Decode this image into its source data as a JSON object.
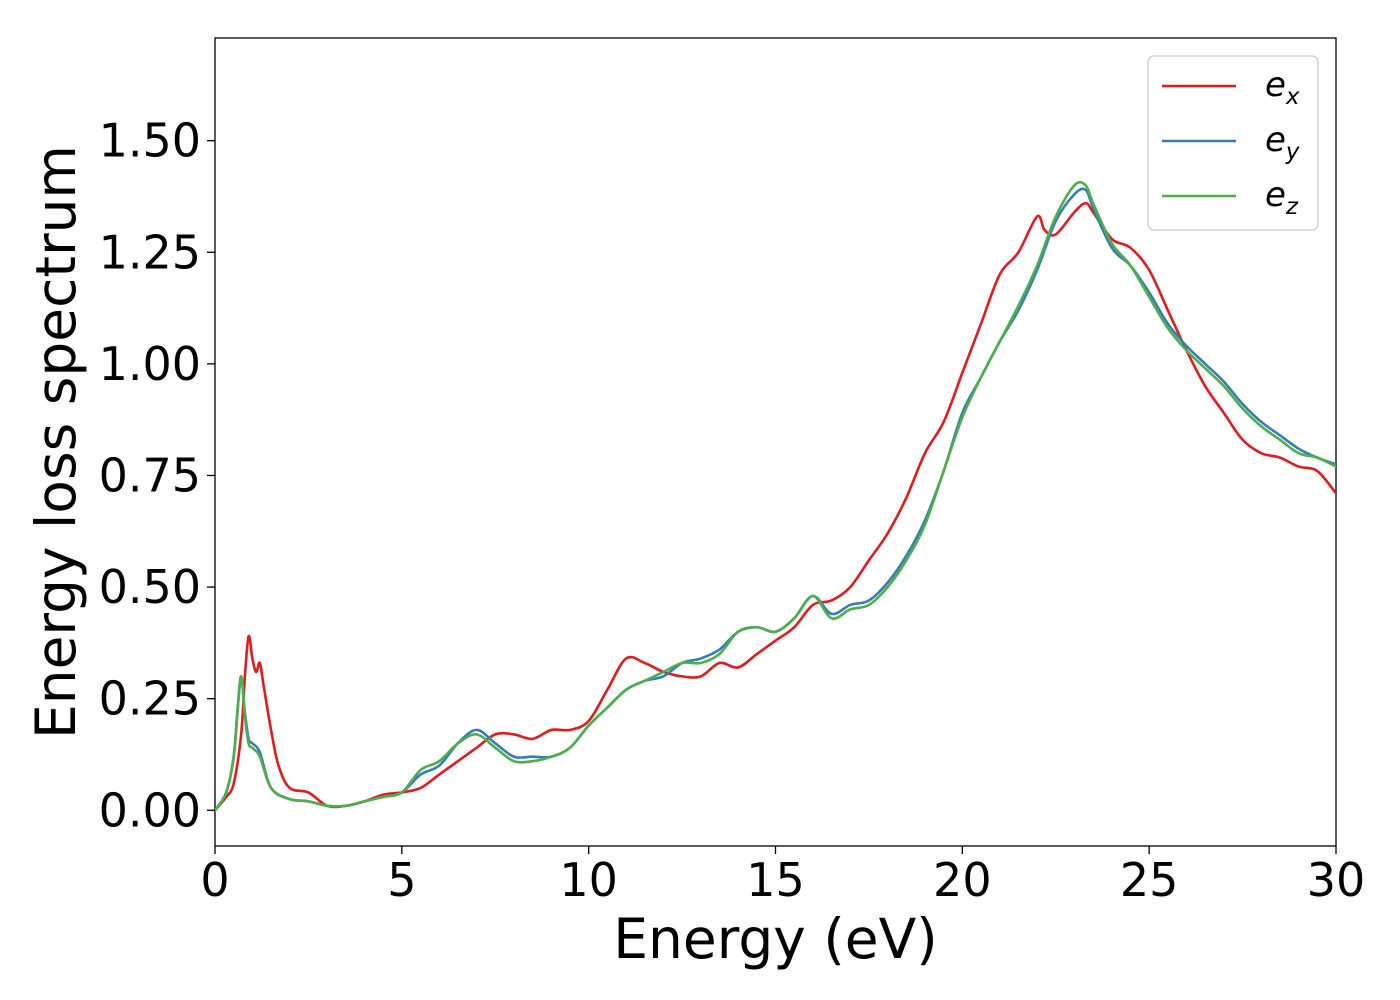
{
  "chart_data": {
    "type": "line",
    "title": "",
    "xlabel": "Energy (eV)",
    "ylabel": "Energy loss spectrum",
    "xlim": [
      0,
      30
    ],
    "ylim": [
      -0.08,
      1.73
    ],
    "xticks": [
      0,
      5,
      10,
      15,
      20,
      25,
      30
    ],
    "xtick_labels": [
      "0",
      "5",
      "10",
      "15",
      "20",
      "25",
      "30"
    ],
    "yticks": [
      0.0,
      0.25,
      0.5,
      0.75,
      1.0,
      1.25,
      1.5
    ],
    "ytick_labels": [
      "0.00",
      "0.25",
      "0.50",
      "0.75",
      "1.00",
      "1.25",
      "1.50"
    ],
    "grid": false,
    "legend": {
      "position": "upper right",
      "entries": [
        {
          "base": "e",
          "sub": "x"
        },
        {
          "base": "e",
          "sub": "y"
        },
        {
          "base": "e",
          "sub": "z"
        }
      ]
    },
    "series": [
      {
        "name": "e_x",
        "color": "#e41a1c",
        "x": [
          0,
          0.3,
          0.5,
          0.7,
          0.8,
          0.9,
          1.0,
          1.1,
          1.2,
          1.3,
          1.5,
          1.7,
          2.0,
          2.5,
          3.0,
          3.5,
          4.0,
          4.5,
          5.0,
          5.5,
          6.0,
          6.5,
          7.0,
          7.5,
          8.0,
          8.5,
          9.0,
          9.5,
          10.0,
          10.5,
          11.0,
          11.5,
          12.0,
          12.5,
          13.0,
          13.5,
          14.0,
          14.5,
          15.0,
          15.5,
          16.0,
          16.5,
          17.0,
          17.5,
          18.0,
          18.5,
          19.0,
          19.5,
          20.0,
          20.5,
          21.0,
          21.5,
          22.0,
          22.2,
          22.5,
          23.0,
          23.3,
          23.5,
          24.0,
          24.5,
          25.0,
          25.5,
          26.0,
          26.5,
          27.0,
          27.5,
          28.0,
          28.5,
          29.0,
          29.5,
          30.0
        ],
        "y": [
          0.0,
          0.03,
          0.06,
          0.17,
          0.3,
          0.39,
          0.34,
          0.31,
          0.33,
          0.28,
          0.18,
          0.1,
          0.05,
          0.04,
          0.01,
          0.01,
          0.02,
          0.035,
          0.04,
          0.05,
          0.08,
          0.11,
          0.14,
          0.17,
          0.17,
          0.16,
          0.18,
          0.18,
          0.2,
          0.27,
          0.34,
          0.33,
          0.31,
          0.3,
          0.3,
          0.33,
          0.32,
          0.35,
          0.38,
          0.41,
          0.46,
          0.47,
          0.5,
          0.56,
          0.62,
          0.7,
          0.8,
          0.87,
          0.98,
          1.09,
          1.2,
          1.25,
          1.33,
          1.3,
          1.29,
          1.34,
          1.36,
          1.34,
          1.28,
          1.26,
          1.21,
          1.12,
          1.03,
          0.95,
          0.89,
          0.83,
          0.8,
          0.79,
          0.77,
          0.76,
          0.71
        ]
      },
      {
        "name": "e_y",
        "color": "#377eb8",
        "x": [
          0,
          0.3,
          0.5,
          0.6,
          0.7,
          0.8,
          0.9,
          1.0,
          1.2,
          1.5,
          2.0,
          2.5,
          3.0,
          3.5,
          4.0,
          4.5,
          5.0,
          5.5,
          6.0,
          6.5,
          7.0,
          7.5,
          8.0,
          8.5,
          9.0,
          9.5,
          10.0,
          10.5,
          11.0,
          11.5,
          12.0,
          12.5,
          13.0,
          13.5,
          14.0,
          14.5,
          15.0,
          15.5,
          16.0,
          16.5,
          17.0,
          17.5,
          18.0,
          18.5,
          19.0,
          19.5,
          20.0,
          20.5,
          21.0,
          21.5,
          22.0,
          22.5,
          23.0,
          23.3,
          23.5,
          24.0,
          24.5,
          25.0,
          25.5,
          26.0,
          26.5,
          27.0,
          27.5,
          28.0,
          28.5,
          29.0,
          29.5,
          30.0
        ],
        "y": [
          0.0,
          0.04,
          0.12,
          0.22,
          0.3,
          0.22,
          0.16,
          0.15,
          0.13,
          0.05,
          0.025,
          0.02,
          0.01,
          0.01,
          0.02,
          0.03,
          0.04,
          0.08,
          0.1,
          0.15,
          0.18,
          0.15,
          0.12,
          0.12,
          0.12,
          0.14,
          0.19,
          0.23,
          0.27,
          0.29,
          0.3,
          0.33,
          0.34,
          0.36,
          0.4,
          0.41,
          0.4,
          0.43,
          0.48,
          0.44,
          0.46,
          0.47,
          0.51,
          0.57,
          0.65,
          0.76,
          0.89,
          0.97,
          1.05,
          1.12,
          1.21,
          1.32,
          1.38,
          1.39,
          1.35,
          1.26,
          1.22,
          1.16,
          1.09,
          1.04,
          1.0,
          0.96,
          0.91,
          0.87,
          0.84,
          0.81,
          0.79,
          0.775
        ]
      },
      {
        "name": "e_z",
        "color": "#4daf4a",
        "x": [
          0,
          0.3,
          0.5,
          0.6,
          0.7,
          0.8,
          0.9,
          1.0,
          1.2,
          1.5,
          2.0,
          2.5,
          3.0,
          3.5,
          4.0,
          4.5,
          5.0,
          5.5,
          6.0,
          6.5,
          7.0,
          7.5,
          8.0,
          8.5,
          9.0,
          9.5,
          10.0,
          10.5,
          11.0,
          11.5,
          12.0,
          12.5,
          13.0,
          13.5,
          14.0,
          14.5,
          15.0,
          15.5,
          16.0,
          16.5,
          17.0,
          17.5,
          18.0,
          18.5,
          19.0,
          19.5,
          20.0,
          20.5,
          21.0,
          21.5,
          22.0,
          22.5,
          23.0,
          23.3,
          23.5,
          24.0,
          24.5,
          25.0,
          25.5,
          26.0,
          26.5,
          27.0,
          27.5,
          28.0,
          28.5,
          29.0,
          29.5,
          30.0
        ],
        "y": [
          0.0,
          0.04,
          0.12,
          0.22,
          0.3,
          0.21,
          0.15,
          0.14,
          0.12,
          0.05,
          0.025,
          0.02,
          0.01,
          0.01,
          0.02,
          0.03,
          0.04,
          0.09,
          0.11,
          0.15,
          0.17,
          0.14,
          0.11,
          0.11,
          0.12,
          0.14,
          0.19,
          0.23,
          0.27,
          0.29,
          0.31,
          0.33,
          0.33,
          0.35,
          0.4,
          0.41,
          0.4,
          0.43,
          0.48,
          0.43,
          0.45,
          0.46,
          0.5,
          0.56,
          0.64,
          0.76,
          0.88,
          0.97,
          1.05,
          1.13,
          1.22,
          1.33,
          1.4,
          1.4,
          1.36,
          1.27,
          1.22,
          1.15,
          1.08,
          1.03,
          0.99,
          0.95,
          0.9,
          0.86,
          0.83,
          0.8,
          0.79,
          0.77
        ]
      }
    ]
  }
}
